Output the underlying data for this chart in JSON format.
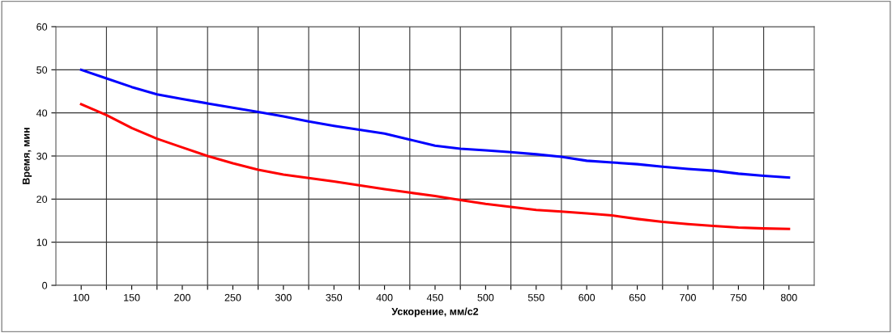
{
  "chart_data": {
    "type": "line",
    "xlabel": "Ускорение, мм/с2",
    "ylabel": "Время, мин",
    "x": [
      100,
      125,
      150,
      175,
      200,
      225,
      250,
      275,
      300,
      325,
      350,
      375,
      400,
      425,
      450,
      475,
      500,
      525,
      550,
      575,
      600,
      625,
      650,
      675,
      700,
      725,
      750,
      775,
      800
    ],
    "series": [
      {
        "color": "#0000ff",
        "values": [
          50,
          48,
          46,
          44.3,
          43.2,
          42.2,
          41.2,
          40.2,
          39.2,
          38,
          37,
          36.1,
          35.2,
          33.8,
          32.4,
          31.7,
          31.3,
          30.9,
          30.4,
          29.8,
          28.9,
          28.5,
          28.1,
          27.5,
          27,
          26.6,
          25.9,
          25.4,
          25
        ]
      },
      {
        "color": "#ff0000",
        "values": [
          42,
          39.5,
          36.5,
          34,
          32,
          30,
          28.3,
          26.8,
          25.7,
          24.9,
          24.1,
          23.2,
          22.3,
          21.5,
          20.7,
          19.8,
          18.9,
          18.2,
          17.5,
          17.1,
          16.7,
          16.2,
          15.4,
          14.7,
          14.2,
          13.8,
          13.4,
          13.2,
          13.1
        ]
      }
    ],
    "xlim": [
      75,
      825
    ],
    "xticks": [
      100,
      {
        "value": 125,
        "label": null
      },
      150,
      {
        "value": 175,
        "label": null
      },
      200,
      {
        "value": 225,
        "label": null
      },
      250,
      {
        "value": 275,
        "label": null
      },
      300,
      {
        "value": 325,
        "label": null
      },
      350,
      {
        "value": 375,
        "label": null
      },
      400,
      {
        "value": 425,
        "label": null
      },
      450,
      {
        "value": 475,
        "label": null
      },
      500,
      {
        "value": 525,
        "label": null
      },
      550,
      {
        "value": 575,
        "label": null
      },
      600,
      {
        "value": 625,
        "label": null
      },
      650,
      {
        "value": 675,
        "label": null
      },
      700,
      {
        "value": 725,
        "label": null
      },
      750,
      {
        "value": 775,
        "label": null
      },
      800
    ],
    "ylim": [
      0,
      60
    ],
    "yticks": [
      0,
      10,
      20,
      30,
      40,
      50,
      60
    ],
    "grid": true,
    "marker": "none",
    "line_style": "solid"
  }
}
